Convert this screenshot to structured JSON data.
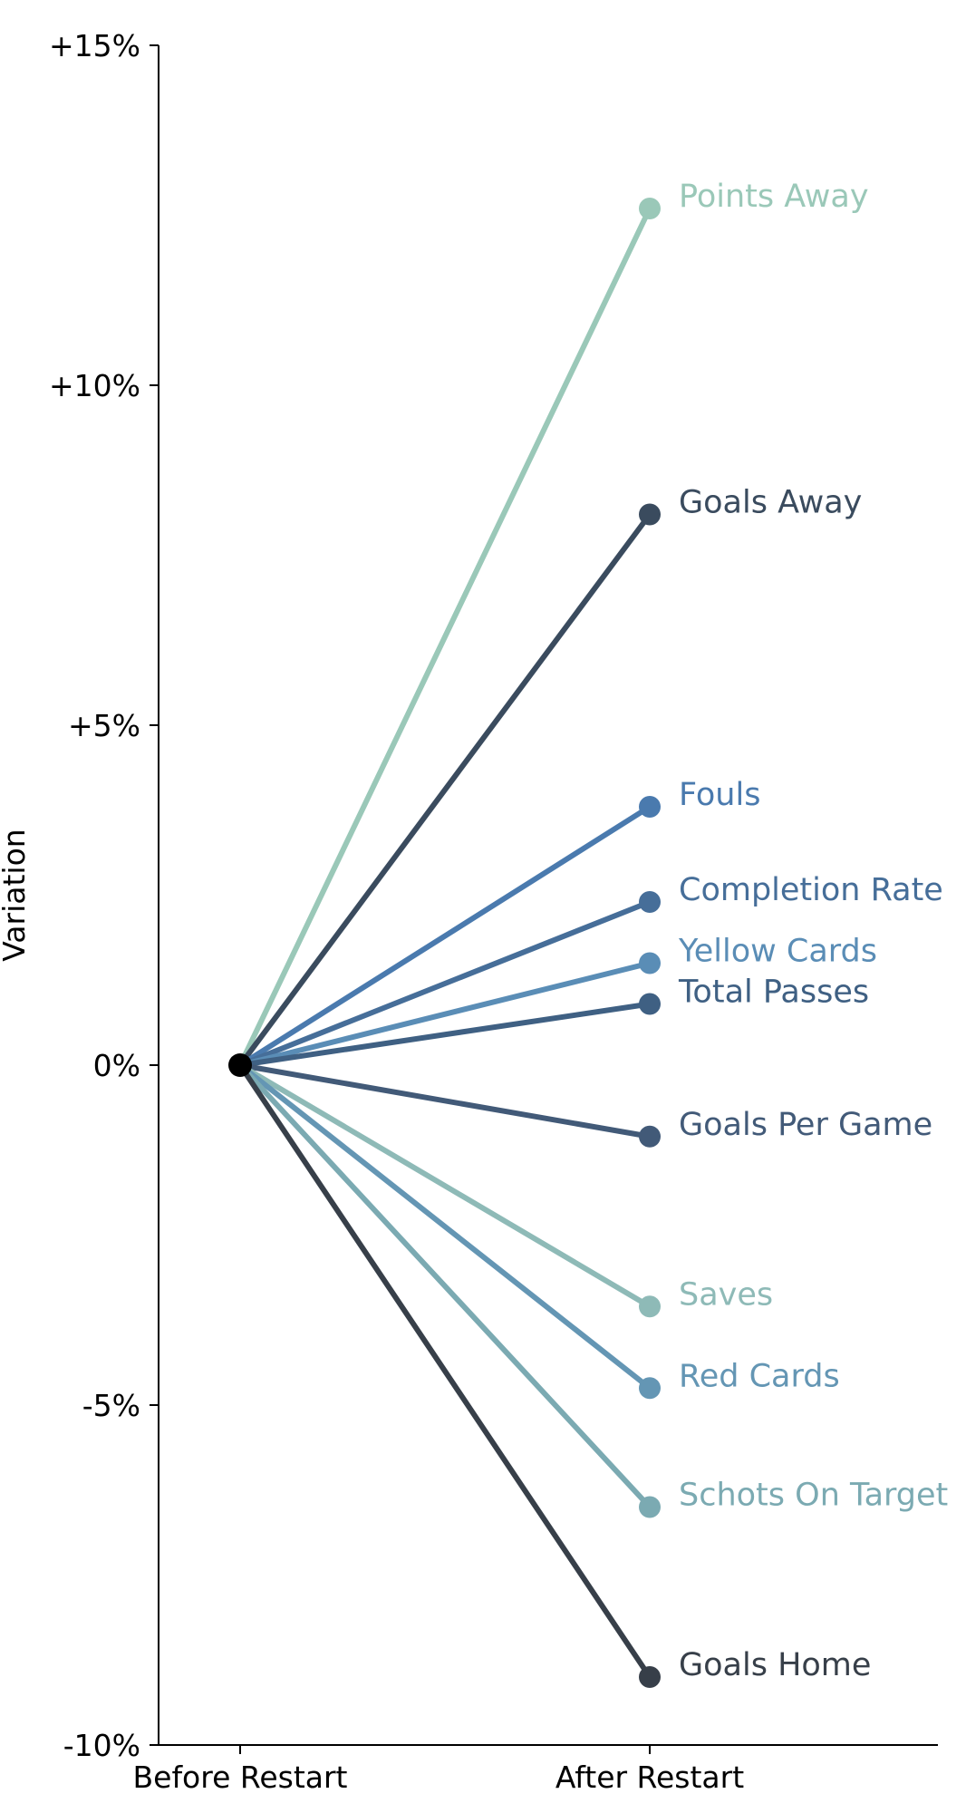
{
  "chart_data": {
    "type": "line",
    "title": "",
    "xlabel": "",
    "ylabel": "Variation",
    "categories": [
      "Before Restart",
      "After Restart"
    ],
    "yticks": [
      {
        "value": 15,
        "label": "+15%"
      },
      {
        "value": 10,
        "label": "+10%"
      },
      {
        "value": 5,
        "label": "+5%"
      },
      {
        "value": 0,
        "label": "0%"
      },
      {
        "value": -5,
        "label": "-5%"
      },
      {
        "value": -10,
        "label": "-10%"
      }
    ],
    "ylim": [
      -10,
      15
    ],
    "grid": false,
    "legend": "direct labels at line ends",
    "series": [
      {
        "name": "Points Away",
        "values": [
          0,
          12.6
        ],
        "color": "#9ac8b8"
      },
      {
        "name": "Goals Away",
        "values": [
          0,
          8.1
        ],
        "color": "#3a4b5e"
      },
      {
        "name": "Fouls",
        "values": [
          0,
          3.8
        ],
        "color": "#4a7aae"
      },
      {
        "name": "Completion Rate",
        "values": [
          0,
          2.4
        ],
        "color": "#466e99"
      },
      {
        "name": "Yellow Cards",
        "values": [
          0,
          1.5
        ],
        "color": "#5a8db6"
      },
      {
        "name": "Total Passes",
        "values": [
          0,
          0.9
        ],
        "color": "#3f6083"
      },
      {
        "name": "Goals Per Game",
        "values": [
          0,
          -1.05
        ],
        "color": "#425a78"
      },
      {
        "name": "Saves",
        "values": [
          0,
          -3.55
        ],
        "color": "#8ebab7"
      },
      {
        "name": "Red Cards",
        "values": [
          0,
          -4.75
        ],
        "color": "#6496b4"
      },
      {
        "name": "Schots On Target",
        "values": [
          0,
          -6.5
        ],
        "color": "#7baab2"
      },
      {
        "name": "Goals Home",
        "values": [
          0,
          -9.0
        ],
        "color": "#373f49"
      }
    ],
    "origin_marker_color": "#000000",
    "axis_color": "#000000"
  }
}
